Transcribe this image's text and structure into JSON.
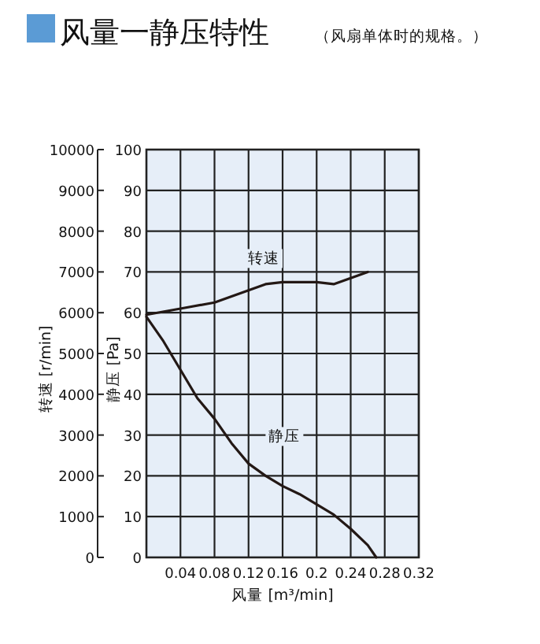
{
  "chart_data": {
    "type": "line",
    "title": "风量一静压特性",
    "subtitle": "（风扇单体时的规格。）",
    "xlabel": "风量 [m³/min]",
    "ylabel": "静压 [Pa]",
    "y2label": "转速 [r/min]",
    "xlim": [
      0,
      0.32
    ],
    "xticks": [
      0.04,
      0.08,
      0.12,
      0.16,
      0.2,
      0.24,
      0.28,
      0.32
    ],
    "ylim": [
      0,
      100
    ],
    "yticks": [
      0,
      10,
      20,
      30,
      40,
      50,
      60,
      70,
      80,
      90,
      100
    ],
    "y2lim": [
      0,
      10000
    ],
    "y2ticks": [
      0,
      1000,
      2000,
      3000,
      4000,
      5000,
      6000,
      7000,
      8000,
      9000,
      10000
    ],
    "grid": true,
    "series": [
      {
        "name": "转速",
        "color": "#231815",
        "axis": "y2",
        "x": [
          0,
          0.04,
          0.08,
          0.12,
          0.14,
          0.16,
          0.2,
          0.22,
          0.24,
          0.26
        ],
        "values": [
          5950,
          6100,
          6250,
          6550,
          6700,
          6750,
          6750,
          6700,
          6850,
          7000
        ]
      },
      {
        "name": "静压",
        "color": "#231815",
        "x": [
          0,
          0.02,
          0.04,
          0.06,
          0.08,
          0.1,
          0.12,
          0.14,
          0.16,
          0.18,
          0.2,
          0.22,
          0.24,
          0.26,
          0.27
        ],
        "values": [
          59,
          53,
          46,
          39,
          34,
          28,
          23,
          20,
          17.5,
          15.5,
          13,
          10.5,
          7,
          3,
          0
        ]
      }
    ]
  }
}
